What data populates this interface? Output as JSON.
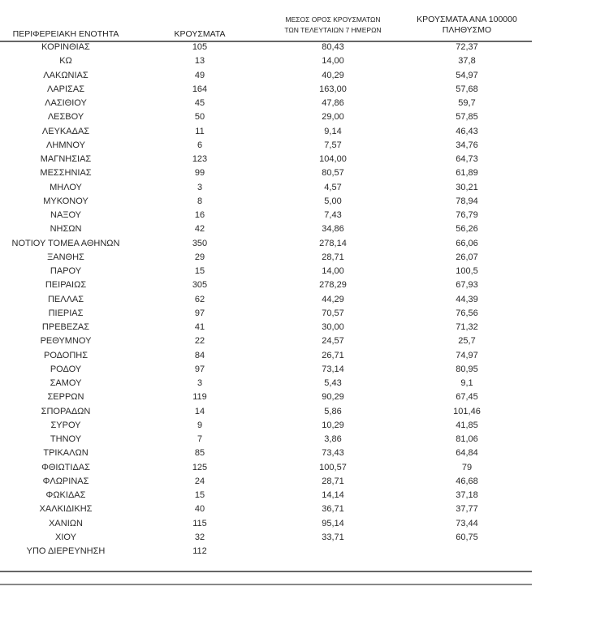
{
  "table": {
    "headers": {
      "region": "ΠΕΡΙΦΕΡΕΙΑΚΗ ΕΝΟΤΗΤΑ",
      "cases": "ΚΡΟΥΣΜΑΤΑ",
      "avg7_line1": "ΜΕΣΟΣ ΟΡΟΣ ΚΡΟΥΣΜΑΤΩΝ",
      "avg7_line2": "ΤΩΝ ΤΕΛΕΥΤΑΙΩΝ 7 ΗΜΕΡΩΝ",
      "per100k_line1": "ΚΡΟΥΣΜΑΤΑ ΑΝΑ 100000",
      "per100k_line2": "ΠΛΗΘΥΣΜΟ"
    },
    "rows": [
      [
        "ΚΟΡΙΝΘΙΑΣ",
        "105",
        "80,43",
        "72,37"
      ],
      [
        "ΚΩ",
        "13",
        "14,00",
        "37,8"
      ],
      [
        "ΛΑΚΩΝΙΑΣ",
        "49",
        "40,29",
        "54,97"
      ],
      [
        "ΛΑΡΙΣΑΣ",
        "164",
        "163,00",
        "57,68"
      ],
      [
        "ΛΑΣΙΘΙΟΥ",
        "45",
        "47,86",
        "59,7"
      ],
      [
        "ΛΕΣΒΟΥ",
        "50",
        "29,00",
        "57,85"
      ],
      [
        "ΛΕΥΚΑΔΑΣ",
        "11",
        "9,14",
        "46,43"
      ],
      [
        "ΛΗΜΝΟΥ",
        "6",
        "7,57",
        "34,76"
      ],
      [
        "ΜΑΓΝΗΣΙΑΣ",
        "123",
        "104,00",
        "64,73"
      ],
      [
        "ΜΕΣΣΗΝΙΑΣ",
        "99",
        "80,57",
        "61,89"
      ],
      [
        "ΜΗΛΟΥ",
        "3",
        "4,57",
        "30,21"
      ],
      [
        "ΜΥΚΟΝΟΥ",
        "8",
        "5,00",
        "78,94"
      ],
      [
        "ΝΑΞΟΥ",
        "16",
        "7,43",
        "76,79"
      ],
      [
        "ΝΗΣΩΝ",
        "42",
        "34,86",
        "56,26"
      ],
      [
        "ΝΟΤΙΟΥ ΤΟΜΕΑ ΑΘΗΝΩΝ",
        "350",
        "278,14",
        "66,06"
      ],
      [
        "ΞΑΝΘΗΣ",
        "29",
        "28,71",
        "26,07"
      ],
      [
        "ΠΑΡΟΥ",
        "15",
        "14,00",
        "100,5"
      ],
      [
        "ΠΕΙΡΑΙΩΣ",
        "305",
        "278,29",
        "67,93"
      ],
      [
        "ΠΕΛΛΑΣ",
        "62",
        "44,29",
        "44,39"
      ],
      [
        "ΠΙΕΡΙΑΣ",
        "97",
        "70,57",
        "76,56"
      ],
      [
        "ΠΡΕΒΕΖΑΣ",
        "41",
        "30,00",
        "71,32"
      ],
      [
        "ΡΕΘΥΜΝΟΥ",
        "22",
        "24,57",
        "25,7"
      ],
      [
        "ΡΟΔΟΠΗΣ",
        "84",
        "26,71",
        "74,97"
      ],
      [
        "ΡΟΔΟΥ",
        "97",
        "73,14",
        "80,95"
      ],
      [
        "ΣΑΜΟΥ",
        "3",
        "5,43",
        "9,1"
      ],
      [
        "ΣΕΡΡΩΝ",
        "119",
        "90,29",
        "67,45"
      ],
      [
        "ΣΠΟΡΑΔΩΝ",
        "14",
        "5,86",
        "101,46"
      ],
      [
        "ΣΥΡΟΥ",
        "9",
        "10,29",
        "41,85"
      ],
      [
        "ΤΗΝΟΥ",
        "7",
        "3,86",
        "81,06"
      ],
      [
        "ΤΡΙΚΑΛΩΝ",
        "85",
        "73,43",
        "64,84"
      ],
      [
        "ΦΘΙΩΤΙΔΑΣ",
        "125",
        "100,57",
        "79"
      ],
      [
        "ΦΛΩΡΙΝΑΣ",
        "24",
        "28,71",
        "46,68"
      ],
      [
        "ΦΩΚΙΔΑΣ",
        "15",
        "14,14",
        "37,18"
      ],
      [
        "ΧΑΛΚΙΔΙΚΗΣ",
        "40",
        "36,71",
        "37,77"
      ],
      [
        "ΧΑΝΙΩΝ",
        "115",
        "95,14",
        "73,44"
      ],
      [
        "ΧΙΟΥ",
        "32",
        "33,71",
        "60,75"
      ],
      [
        "ΥΠΟ ΔΙΕΡΕΥΝΗΣΗ",
        "112",
        "",
        ""
      ]
    ]
  }
}
